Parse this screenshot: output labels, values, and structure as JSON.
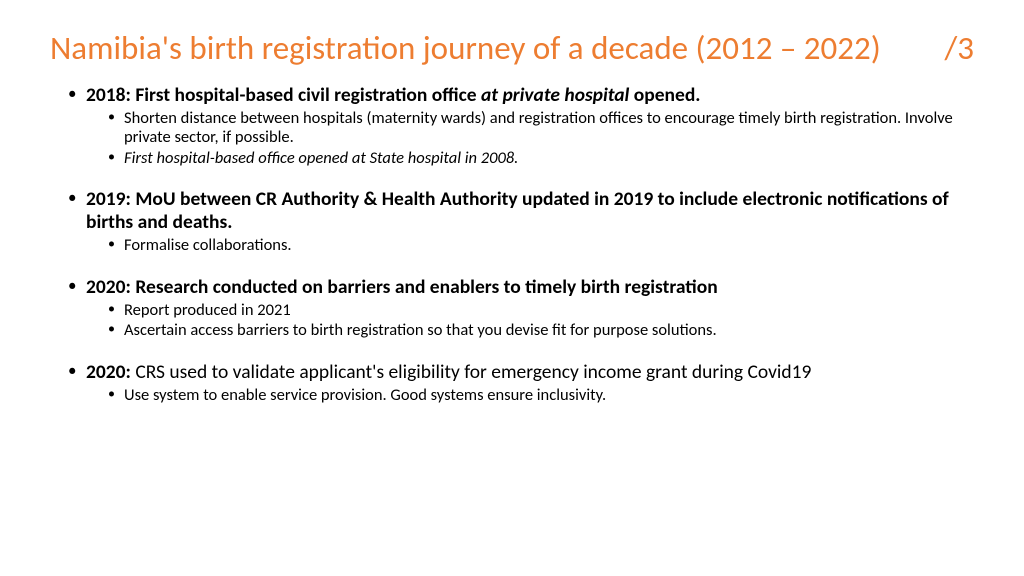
{
  "title": {
    "main": "Namibia's birth registration journey of a decade (2012 – 2022)",
    "page": "/3"
  },
  "colors": {
    "heading": "#ed7d31",
    "body": "#000000",
    "background": "#ffffff"
  },
  "items": [
    {
      "head_pre": "2018: First hospital-based civil registration office ",
      "head_em": "at private hospital",
      "head_post": " opened.",
      "sub": [
        {
          "text": "Shorten distance between hospitals (maternity wards) and registration offices to encourage timely birth registration. Involve private sector, if possible.",
          "italic": false
        },
        {
          "text": "First hospital-based office opened at State hospital in 2008.",
          "italic": true
        }
      ]
    },
    {
      "head_pre": "2019: MoU between CR Authority & Health Authority updated in 2019 to include electronic notifications of births and deaths.",
      "head_em": "",
      "head_post": "",
      "sub": [
        {
          "text": "Formalise collaborations.",
          "italic": false
        }
      ]
    },
    {
      "head_pre": "2020: Research conducted on barriers and enablers to timely birth registration",
      "head_em": "",
      "head_post": "",
      "sub": [
        {
          "text": "Report produced in 2021",
          "italic": false
        },
        {
          "text": "Ascertain access barriers to birth registration so that you devise fit for purpose solutions.",
          "italic": false
        }
      ]
    },
    {
      "head_bold": "2020: ",
      "head_plain": "CRS used to validate applicant's eligibility for emergency income grant during Covid19",
      "sub": [
        {
          "text": "Use system to enable service provision. Good systems ensure inclusivity.",
          "italic": false
        }
      ]
    }
  ]
}
